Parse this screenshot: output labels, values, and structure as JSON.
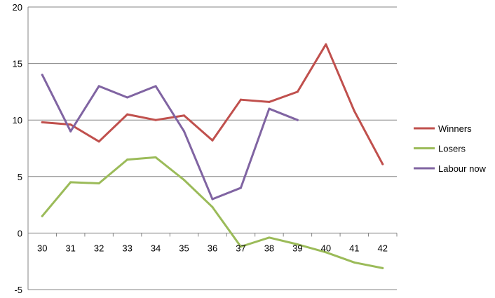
{
  "chart_data": {
    "type": "line",
    "x": [
      30,
      31,
      32,
      33,
      34,
      35,
      36,
      37,
      38,
      39,
      40,
      41,
      42
    ],
    "categories": [
      "30",
      "31",
      "32",
      "33",
      "34",
      "35",
      "36",
      "37",
      "38",
      "39",
      "40",
      "41",
      "42"
    ],
    "ylim": [
      -5,
      20
    ],
    "yticks": [
      -5,
      0,
      5,
      10,
      15,
      20
    ],
    "grid": true,
    "legend_position": "right",
    "series": [
      {
        "name": "Winners",
        "color": "#c0504d",
        "values": [
          9.8,
          9.6,
          8.1,
          10.5,
          10.0,
          10.4,
          8.2,
          11.8,
          11.6,
          12.5,
          16.7,
          10.8,
          6.1
        ]
      },
      {
        "name": "Losers",
        "color": "#9bbb59",
        "values": [
          1.5,
          4.5,
          4.4,
          6.5,
          6.7,
          4.7,
          2.3,
          -1.2,
          -0.4,
          -1.0,
          -1.7,
          -2.6,
          -3.1
        ]
      },
      {
        "name": "Labour now",
        "color": "#8064a2",
        "values": [
          14.0,
          9.0,
          13.0,
          12.0,
          13.0,
          9.0,
          3.0,
          4.0,
          11.0,
          10.0,
          null,
          null,
          null
        ]
      }
    ]
  }
}
